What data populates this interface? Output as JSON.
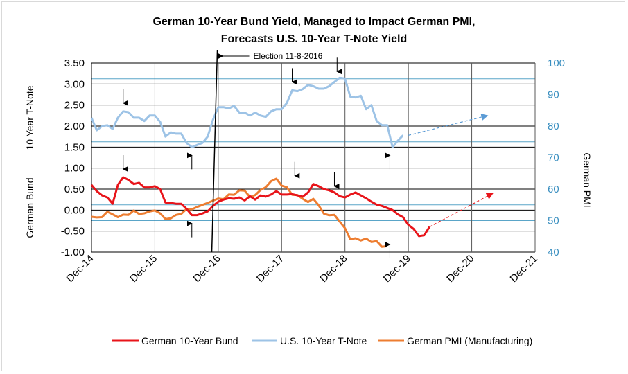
{
  "chart_data": {
    "type": "line",
    "title": [
      "German 10-Year Bund Yield, Managed to Impact German PMI,",
      "Forecasts U.S. 10-Year T-Note Yield"
    ],
    "ylabel_left": [
      "German Bund",
      "10 Year T-Note"
    ],
    "ylabel_right": "German PMI",
    "x_ticks": [
      "Dec-14",
      "Dec-15",
      "Dec-16",
      "Dec-17",
      "Dec-18",
      "Dec-19",
      "Dec-20",
      "Dec-21"
    ],
    "y_left_ticks": [
      "3.50",
      "3.00",
      "2.50",
      "2.00",
      "1.50",
      "1.00",
      "0.50",
      "0.00",
      "-0.50",
      "-1.00"
    ],
    "y_right_ticks": [
      "100",
      "90",
      "80",
      "70",
      "60",
      "50",
      "40"
    ],
    "ylim_left": [
      -1.0,
      3.5
    ],
    "ylim_right": [
      40,
      100
    ],
    "x_range_months": [
      0,
      84
    ],
    "annotation": "Election 11-8-2016",
    "grid": "horizontal",
    "colors": {
      "bund": "#e8141a",
      "tnote": "#9dc3e6",
      "pmi": "#ed7d31",
      "blue_grid": "#5aa5c8",
      "right_axis": "#3a8fc0"
    },
    "series": [
      {
        "name": "German 10-Year Bund",
        "axis": "left",
        "values": [
          0.6,
          0.45,
          0.35,
          0.3,
          0.15,
          0.6,
          0.78,
          0.72,
          0.62,
          0.65,
          0.54,
          0.54,
          0.57,
          0.5,
          0.18,
          0.17,
          0.15,
          0.15,
          0.03,
          -0.12,
          -0.12,
          -0.08,
          -0.03,
          0.1,
          0.2,
          0.25,
          0.28,
          0.27,
          0.3,
          0.23,
          0.33,
          0.25,
          0.35,
          0.32,
          0.37,
          0.45,
          0.37,
          0.37,
          0.38,
          0.35,
          0.32,
          0.42,
          0.62,
          0.57,
          0.5,
          0.47,
          0.42,
          0.33,
          0.3,
          0.37,
          0.42,
          0.35,
          0.28,
          0.2,
          0.13,
          0.1,
          0.05,
          0.0,
          -0.1,
          -0.17,
          -0.35,
          -0.45,
          -0.62,
          -0.6,
          -0.4
        ]
      },
      {
        "name": "U.S. 10-Year T-Note",
        "axis": "left",
        "values": [
          2.2,
          1.9,
          2.0,
          2.02,
          1.93,
          2.2,
          2.35,
          2.33,
          2.2,
          2.2,
          2.12,
          2.25,
          2.25,
          2.1,
          1.75,
          1.85,
          1.82,
          1.82,
          1.6,
          1.5,
          1.55,
          1.6,
          1.75,
          2.15,
          2.45,
          2.45,
          2.42,
          2.48,
          2.32,
          2.32,
          2.25,
          2.32,
          2.25,
          2.22,
          2.35,
          2.4,
          2.4,
          2.55,
          2.85,
          2.83,
          2.88,
          2.98,
          2.95,
          2.89,
          2.89,
          2.95,
          3.05,
          3.15,
          3.13,
          2.7,
          2.68,
          2.72,
          2.4,
          2.5,
          2.12,
          2.02,
          2.02,
          1.5,
          1.65,
          1.78
        ]
      },
      {
        "name": "German PMI (Manufacturing)",
        "axis": "right",
        "values": [
          51.2,
          51.0,
          51.1,
          52.8,
          52.0,
          51.1,
          51.9,
          51.8,
          53.2,
          52.1,
          52.3,
          52.9,
          53.2,
          52.3,
          50.5,
          50.7,
          51.8,
          52.1,
          53.7,
          53.6,
          54.3,
          55.0,
          55.6,
          56.3,
          57.0,
          56.8,
          58.3,
          58.2,
          59.6,
          59.5,
          57.5,
          58.1,
          59.7,
          60.6,
          62.5,
          63.3,
          61.1,
          60.6,
          58.2,
          58.1,
          56.9,
          55.9,
          56.9,
          54.9,
          52.2,
          51.7,
          51.8,
          49.7,
          47.6,
          44.1,
          44.4,
          43.7,
          44.3,
          43.2,
          43.5,
          41.7,
          41.9
        ]
      }
    ],
    "forecasts": [
      {
        "name": "bund-forecast",
        "axis": "left",
        "from": [
          64,
          -0.4
        ],
        "to": [
          76,
          0.4
        ]
      },
      {
        "name": "tnote-forecast",
        "axis": "left",
        "from": [
          60,
          1.78
        ],
        "to": [
          75,
          2.25
        ]
      }
    ],
    "election_month": 23.3
  }
}
